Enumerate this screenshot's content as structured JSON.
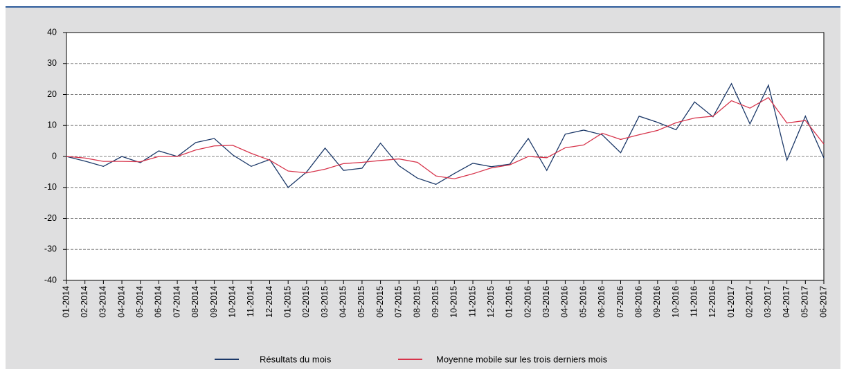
{
  "chart_data": {
    "type": "line",
    "categories": [
      "01-2014",
      "02-2014",
      "03-2014",
      "04-2014",
      "05-2014",
      "06-2014",
      "07-2014",
      "08-2014",
      "09-2014",
      "10-2014",
      "11-2014",
      "12-2014",
      "01-2015",
      "02-2015",
      "03-2015",
      "04-2015",
      "05-2015",
      "06-2015",
      "07-2015",
      "08-2015",
      "09-2015",
      "10-2015",
      "11-2015",
      "12-2015",
      "01-2016",
      "02-2016",
      "03-2016",
      "04-2016",
      "05-2016",
      "06-2016",
      "07-2016",
      "08-2016",
      "09-2016",
      "10-2016",
      "11-2016",
      "12-2016",
      "01-2017",
      "02-2017",
      "03-2017",
      "04-2017",
      "05-2017",
      "06-2017"
    ],
    "series": [
      {
        "name": "Résultats du mois",
        "color": "#1b3868",
        "values": [
          0,
          -1.5,
          -3.2,
          0,
          -2,
          1.8,
          0,
          4.5,
          5.8,
          0.5,
          -3.2,
          -1,
          -10,
          -5,
          2.7,
          -4.5,
          -3.8,
          4.3,
          -3,
          -7,
          -9,
          -5.5,
          -2.2,
          -3.3,
          -2.5,
          5.8,
          -4.5,
          7.2,
          8.5,
          7,
          1.2,
          13,
          11,
          8.6,
          17.6,
          12.8,
          23.5,
          10.5,
          23,
          -1.2,
          13,
          -0.5
        ]
      },
      {
        "name": "Moyenne mobile sur les trois derniers mois",
        "color": "#d7344b",
        "values": [
          0,
          -0.5,
          -1.6,
          -1.6,
          -1.7,
          0,
          0,
          2.1,
          3.4,
          3.6,
          1,
          -1.2,
          -4.7,
          -5.3,
          -4.1,
          -2.3,
          -1.9,
          -1.3,
          -0.8,
          -1.9,
          -6.3,
          -7.2,
          -5.6,
          -3.7,
          -2.7,
          0,
          -0.4,
          2.8,
          3.7,
          7.5,
          5.5,
          7,
          8.4,
          10.9,
          12.4,
          13,
          18,
          15.6,
          19,
          10.8,
          11.6,
          4
        ]
      }
    ],
    "ylim": [
      -40,
      40
    ],
    "yticks": [
      -40,
      -30,
      -20,
      -10,
      0,
      10,
      20,
      30,
      40
    ],
    "grid": true,
    "legend": "bottom"
  }
}
